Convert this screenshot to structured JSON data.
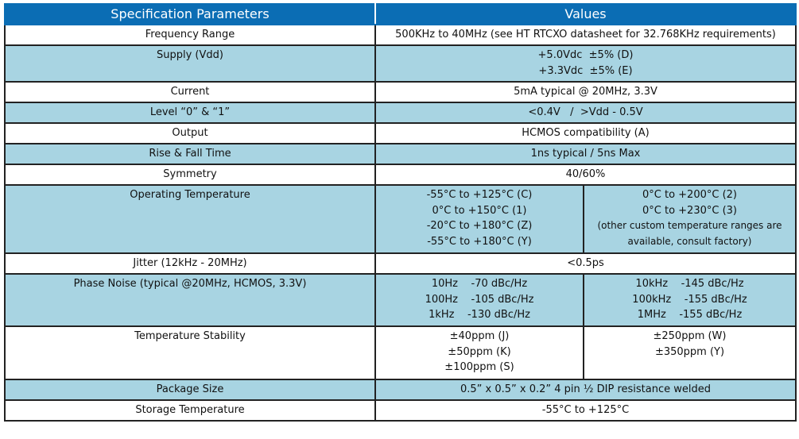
{
  "header": {
    "param": "Specification Parameters",
    "values": "Values"
  },
  "rows": {
    "frequency": {
      "label": "Frequency Range",
      "value": "500KHz to 40MHz (see HT RTCXO datasheet for 32.768KHz requirements)"
    },
    "supply": {
      "label": "Supply (Vdd)",
      "value": "+5.0Vdc  ±5% (D)\n+3.3Vdc  ±5% (E)"
    },
    "current": {
      "label": "Current",
      "value": "5mA typical @ 20MHz, 3.3V"
    },
    "level": {
      "label": "Level “0” & “1”",
      "value": "<0.4V   /  >Vdd - 0.5V"
    },
    "output": {
      "label": "Output",
      "value": "HCMOS compatibility (A)"
    },
    "rise_fall": {
      "label": "Rise & Fall Time",
      "value": "1ns typical / 5ns Max"
    },
    "symmetry": {
      "label": "Symmetry",
      "value": "40/60%"
    },
    "op_temp": {
      "label": "Operating Temperature",
      "value_left": "-55°C to +125°C (C)\n0°C to +150°C (1)\n-20°C to +180°C (Z)\n-55°C to +180°C (Y)",
      "value_right": "0°C to +200°C (2)\n0°C to +230°C (3)",
      "note": "(other custom temperature ranges are\navailable, consult factory)"
    },
    "jitter": {
      "label": "Jitter (12kHz - 20MHz)",
      "value": "<0.5ps"
    },
    "phase_noise": {
      "label": "Phase Noise (typical @20MHz, HCMOS, 3.3V)",
      "value_left": "10Hz    -70 dBc/Hz\n100Hz    -105 dBc/Hz\n1kHz    -130 dBc/Hz",
      "value_right": "10kHz    -145 dBc/Hz\n100kHz    -155 dBc/Hz\n1MHz    -155 dBc/Hz"
    },
    "temp_stability": {
      "label": "Temperature Stability",
      "value_left": "±40ppm (J)\n±50ppm (K)\n±100ppm (S)",
      "value_right": "±250ppm (W)\n±350ppm (Y)"
    },
    "package": {
      "label": "Package Size",
      "value": "0.5” x 0.5” x 0.2” 4 pin ½ DIP resistance welded"
    },
    "storage": {
      "label": "Storage Temperature",
      "value": "-55°C to +125°C"
    }
  },
  "colors": {
    "header": "#0b6db4",
    "row_alt": "#a8d4e2"
  }
}
